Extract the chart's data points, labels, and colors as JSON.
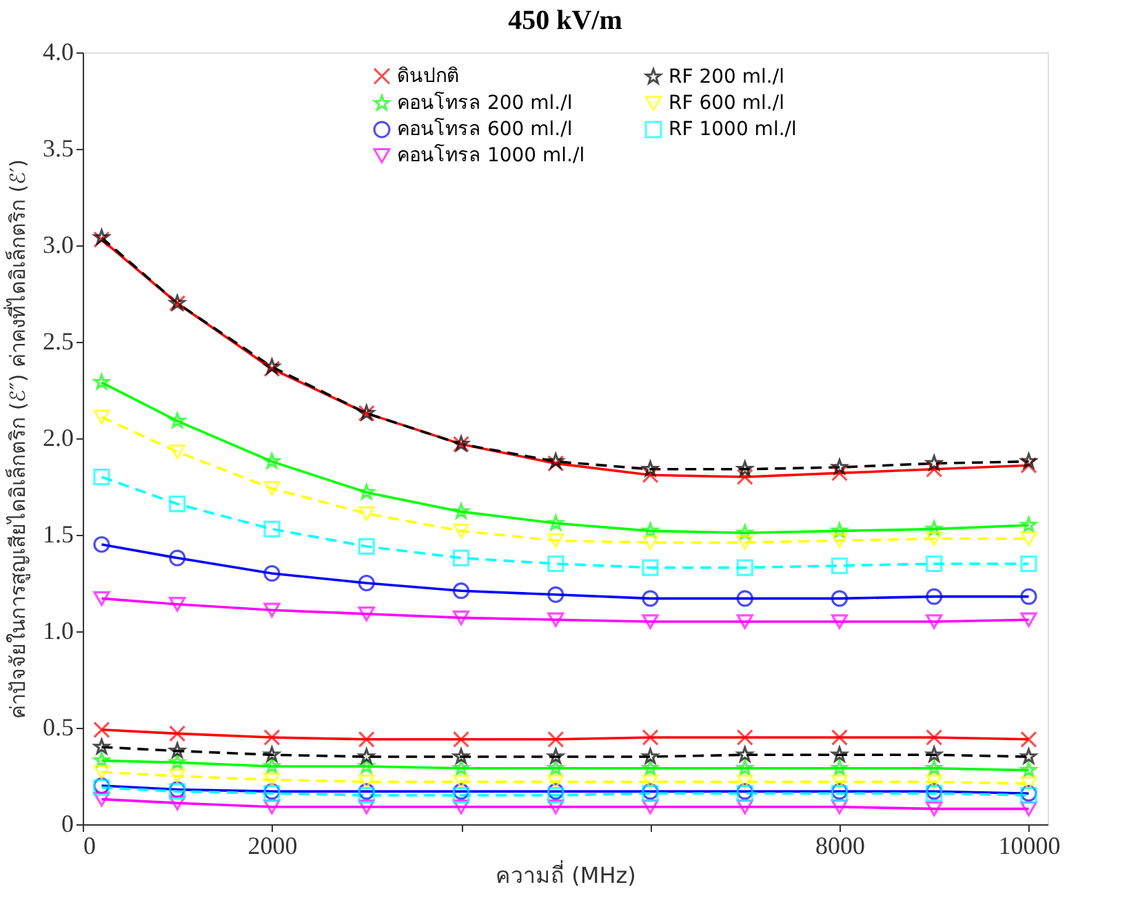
{
  "chart_data": {
    "type": "line",
    "title": "450 kV/m",
    "xlabel": "ความถี่ (MHz)",
    "ylabel": "ค่าปัจจัยในการสูญเสียไดอิเล็กตริก (ℰ″)     ค่าคงที่ไดอิเล็กตริก (ℰ′)",
    "x": [
      200,
      1000,
      2000,
      3000,
      4000,
      5000,
      6000,
      7000,
      8000,
      9000,
      10000
    ],
    "xlim": [
      0,
      10200
    ],
    "xticks": [
      0,
      2000,
      {
        "value": 4000,
        "label": null
      },
      {
        "value": 6000,
        "label": null
      },
      8000,
      10000
    ],
    "ylim": [
      0,
      4
    ],
    "yticks": [
      0,
      0.5,
      {
        "value": 1,
        "label": "1.0"
      },
      1.5,
      {
        "value": 2,
        "label": "2.0"
      },
      2.5,
      {
        "value": 3,
        "label": "3.0"
      },
      3.5,
      {
        "value": 4,
        "label": "4.0"
      }
    ],
    "grid": false,
    "legend": "top",
    "series": [
      {
        "name": "ดินปกติ",
        "color": "#ff0000",
        "marker": "cross",
        "line_style": "solid",
        "values": [
          3.03,
          2.7,
          2.36,
          2.13,
          1.97,
          1.87,
          1.81,
          1.8,
          1.82,
          1.84,
          1.86
        ]
      },
      {
        "name": "คอนโทรล 200 ml./l",
        "color": "#00ff00",
        "marker": "star",
        "line_style": "solid",
        "values": [
          2.29,
          2.09,
          1.88,
          1.72,
          1.62,
          1.56,
          1.52,
          1.51,
          1.52,
          1.53,
          1.55
        ]
      },
      {
        "name": "คอนโทรล 600 ml./l",
        "color": "#0000ff",
        "marker": "circle",
        "line_style": "solid",
        "values": [
          1.45,
          1.38,
          1.3,
          1.25,
          1.21,
          1.19,
          1.17,
          1.17,
          1.17,
          1.18,
          1.18
        ]
      },
      {
        "name": "คอนโทรล 1000 ml./l",
        "color": "#ff00ff",
        "marker": "triangle",
        "line_style": "solid",
        "values": [
          1.17,
          1.14,
          1.11,
          1.09,
          1.07,
          1.06,
          1.05,
          1.05,
          1.05,
          1.05,
          1.06
        ]
      },
      {
        "name": "RF 200 ml./l",
        "color": "#000000",
        "marker": "star",
        "line_style": "dashed",
        "values": [
          3.04,
          2.7,
          2.37,
          2.13,
          1.97,
          1.88,
          1.84,
          1.84,
          1.85,
          1.87,
          1.88
        ]
      },
      {
        "name": "RF 600 ml./l",
        "color": "#ffff00",
        "marker": "triangle",
        "line_style": "dashed",
        "values": [
          2.11,
          1.93,
          1.74,
          1.61,
          1.52,
          1.47,
          1.46,
          1.46,
          1.47,
          1.48,
          1.48
        ]
      },
      {
        "name": "RF 1000 ml./l",
        "color": "#00ffff",
        "marker": "square",
        "line_style": "dashed",
        "values": [
          1.8,
          1.66,
          1.53,
          1.44,
          1.38,
          1.35,
          1.33,
          1.33,
          1.34,
          1.35,
          1.35
        ]
      },
      {
        "color": "#ff0000",
        "marker": "cross",
        "line_style": "solid",
        "values": [
          0.49,
          0.47,
          0.45,
          0.44,
          0.44,
          0.44,
          0.45,
          0.45,
          0.45,
          0.45,
          0.44
        ]
      },
      {
        "color": "#00ff00",
        "marker": "star",
        "line_style": "solid",
        "values": [
          0.33,
          0.32,
          0.3,
          0.3,
          0.29,
          0.29,
          0.29,
          0.29,
          0.29,
          0.29,
          0.28
        ]
      },
      {
        "color": "#0000ff",
        "marker": "circle",
        "line_style": "solid",
        "values": [
          0.2,
          0.18,
          0.17,
          0.17,
          0.17,
          0.17,
          0.17,
          0.17,
          0.17,
          0.17,
          0.16
        ]
      },
      {
        "color": "#ff00ff",
        "marker": "triangle",
        "line_style": "solid",
        "values": [
          0.13,
          0.11,
          0.09,
          0.09,
          0.09,
          0.09,
          0.09,
          0.09,
          0.09,
          0.08,
          0.08
        ]
      },
      {
        "color": "#000000",
        "marker": "star",
        "line_style": "dashed",
        "values": [
          0.4,
          0.38,
          0.36,
          0.35,
          0.35,
          0.35,
          0.35,
          0.36,
          0.36,
          0.36,
          0.35
        ]
      },
      {
        "color": "#ffff00",
        "marker": "triangle",
        "line_style": "dashed",
        "values": [
          0.27,
          0.25,
          0.23,
          0.22,
          0.22,
          0.22,
          0.22,
          0.22,
          0.22,
          0.22,
          0.21
        ]
      },
      {
        "color": "#00ffff",
        "marker": "square",
        "line_style": "dashed",
        "values": [
          0.19,
          0.17,
          0.16,
          0.15,
          0.15,
          0.15,
          0.16,
          0.16,
          0.16,
          0.16,
          0.15
        ]
      }
    ]
  }
}
